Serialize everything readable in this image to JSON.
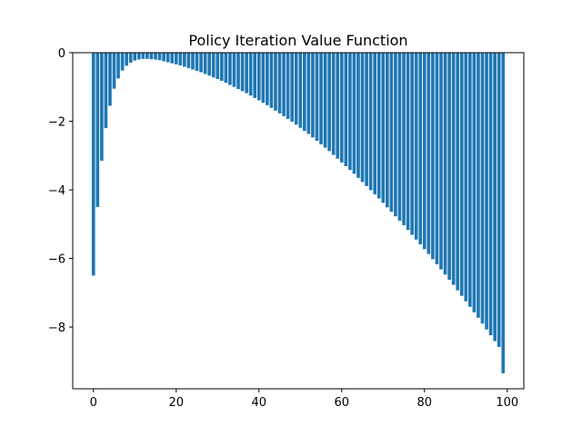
{
  "chart_data": {
    "type": "bar",
    "title": "Policy Iteration Value Function",
    "xlabel": "",
    "ylabel": "",
    "xlim": [
      -5.0,
      104.0
    ],
    "ylim": [
      -9.8,
      0
    ],
    "xticks": [
      0,
      20,
      40,
      60,
      80,
      100
    ],
    "yticks": [
      0,
      -2,
      -4,
      -6,
      -8
    ],
    "grid": false,
    "bar_color": "#1f77b4",
    "x": [
      0,
      1,
      2,
      3,
      4,
      5,
      6,
      7,
      8,
      9,
      10,
      11,
      12,
      13,
      14,
      15,
      16,
      17,
      18,
      19,
      20,
      21,
      22,
      23,
      24,
      25,
      26,
      27,
      28,
      29,
      30,
      31,
      32,
      33,
      34,
      35,
      36,
      37,
      38,
      39,
      40,
      41,
      42,
      43,
      44,
      45,
      46,
      47,
      48,
      49,
      50,
      51,
      52,
      53,
      54,
      55,
      56,
      57,
      58,
      59,
      60,
      61,
      62,
      63,
      64,
      65,
      66,
      67,
      68,
      69,
      70,
      71,
      72,
      73,
      74,
      75,
      76,
      77,
      78,
      79,
      80,
      81,
      82,
      83,
      84,
      85,
      86,
      87,
      88,
      89,
      90,
      91,
      92,
      93,
      94,
      95,
      96,
      97,
      98,
      99
    ],
    "values": [
      -6.5,
      -4.5,
      -3.15,
      -2.2,
      -1.55,
      -1.05,
      -0.75,
      -0.52,
      -0.38,
      -0.29,
      -0.23,
      -0.2,
      -0.18,
      -0.18,
      -0.19,
      -0.2,
      -0.22,
      -0.25,
      -0.28,
      -0.31,
      -0.34,
      -0.37,
      -0.41,
      -0.45,
      -0.49,
      -0.53,
      -0.57,
      -0.62,
      -0.67,
      -0.72,
      -0.77,
      -0.82,
      -0.88,
      -0.94,
      -1.0,
      -1.06,
      -1.12,
      -1.18,
      -1.25,
      -1.32,
      -1.39,
      -1.46,
      -1.53,
      -1.61,
      -1.69,
      -1.77,
      -1.85,
      -1.93,
      -2.01,
      -2.1,
      -2.19,
      -2.28,
      -2.37,
      -2.47,
      -2.57,
      -2.67,
      -2.77,
      -2.87,
      -2.98,
      -3.09,
      -3.2,
      -3.31,
      -3.42,
      -3.53,
      -3.65,
      -3.77,
      -3.89,
      -4.01,
      -4.13,
      -4.25,
      -4.38,
      -4.51,
      -4.64,
      -4.77,
      -4.9,
      -5.03,
      -5.17,
      -5.31,
      -5.45,
      -5.59,
      -5.73,
      -5.87,
      -6.02,
      -6.17,
      -6.32,
      -6.47,
      -6.62,
      -6.77,
      -6.93,
      -7.09,
      -7.25,
      -7.41,
      -7.57,
      -7.73,
      -7.9,
      -8.07,
      -8.24,
      -8.41,
      -8.58,
      -9.35
    ]
  }
}
